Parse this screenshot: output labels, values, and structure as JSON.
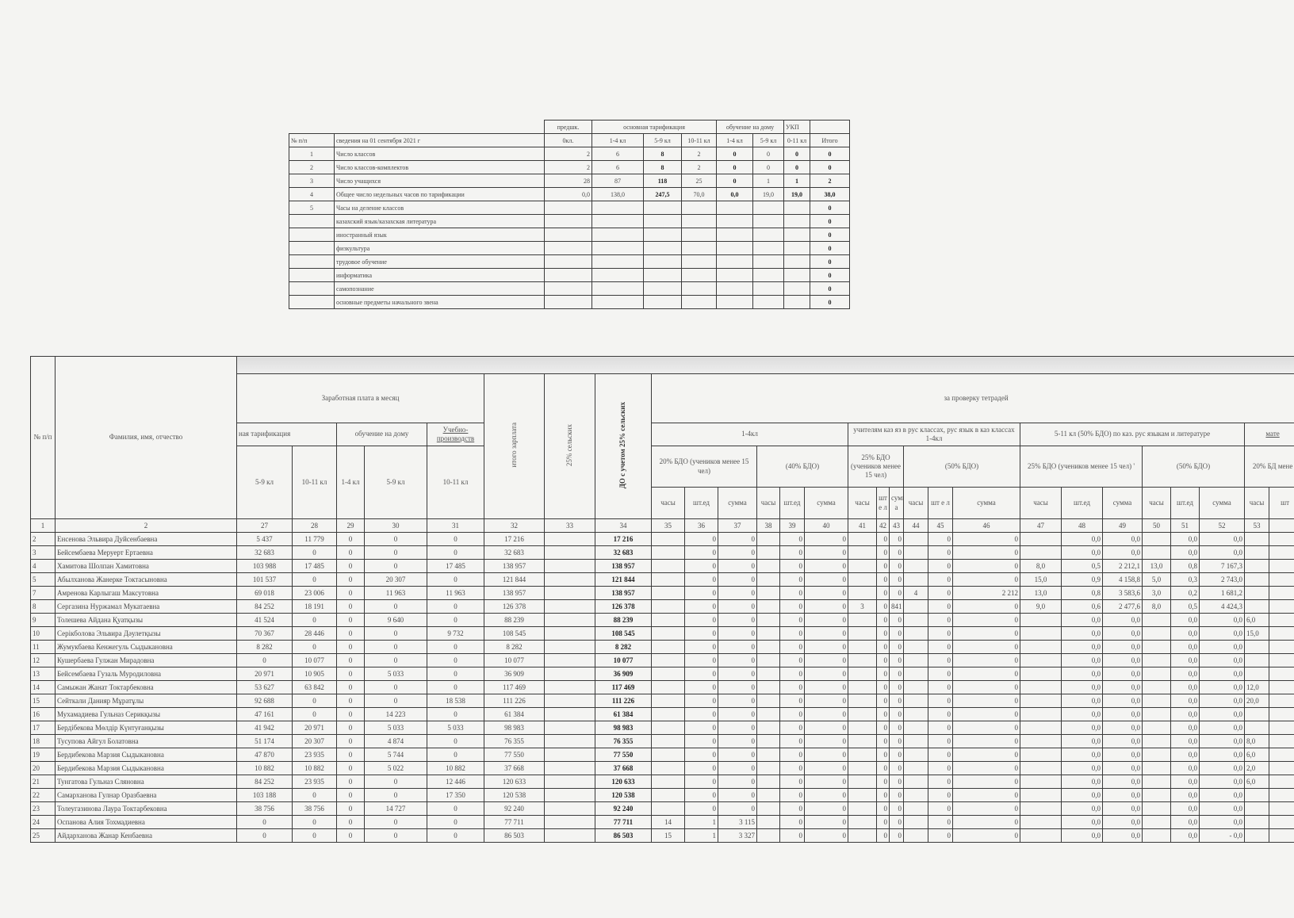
{
  "summary_table": {
    "group_headers": [
      "предшк.",
      "основная тарификация",
      "обучение на дому",
      "УКП"
    ],
    "headers": [
      "№ п/п",
      "сведения на 01 сентября 2021 г",
      "0кл.",
      "1-4 кл",
      "5-9 кл",
      "10-11 кл",
      "1-4 кл",
      "5-9 кл",
      "0-11 кл",
      "Итого"
    ],
    "rows": [
      [
        "1",
        "Число классов",
        "2",
        "6",
        "8",
        "2",
        "0",
        "0",
        "0",
        "0"
      ],
      [
        "2",
        "Число классов-комплектов",
        "2",
        "6",
        "8",
        "2",
        "0",
        "0",
        "0",
        "0"
      ],
      [
        "3",
        "Число учащихся",
        "28",
        "87",
        "118",
        "25",
        "0",
        "1",
        "1",
        "2"
      ],
      [
        "4",
        "Общее число недельных часов по тарификации",
        "0,0",
        "138,0",
        "247,5",
        "70,0",
        "0,0",
        "19,0",
        "19,0",
        "38,0"
      ],
      [
        "5",
        "Часы на деление классов",
        "",
        "",
        "",
        "",
        "",
        "",
        "",
        "0"
      ],
      [
        "",
        "казахский язык/казахская литература",
        "",
        "",
        "",
        "",
        "",
        "",
        "",
        "0"
      ],
      [
        "",
        "иностранный язык",
        "",
        "",
        "",
        "",
        "",
        "",
        "",
        "0"
      ],
      [
        "",
        "физкультура",
        "",
        "",
        "",
        "",
        "",
        "",
        "",
        "0"
      ],
      [
        "",
        "трудовое обучение",
        "",
        "",
        "",
        "",
        "",
        "",
        "",
        "0"
      ],
      [
        "",
        "информатика",
        "",
        "",
        "",
        "",
        "",
        "",
        "",
        "0"
      ],
      [
        "",
        "самопознание",
        "",
        "",
        "",
        "",
        "",
        "",
        "",
        "0"
      ],
      [
        "",
        "основные предметы начального звена",
        "",
        "",
        "",
        "",
        "",
        "",
        "",
        "0"
      ]
    ]
  },
  "payroll_table": {
    "h_num": "№ п/п",
    "h_name": "Фамилия, имя, отчество",
    "h_salary": "Заработная плата в месяц",
    "h_tarif": "ная тарификация",
    "h_home": "обучение на дому",
    "h_upk": "Учебно-производств",
    "h_leaf_salary": [
      "5-9 кл",
      "10-11 кл",
      "1-4 кл",
      "5-9 кл",
      "10-11 кл"
    ],
    "h_total": "итого зарплата",
    "h_rural": "25% сельских",
    "h_do": "ДО с учетом 25% сельских",
    "h_notebooks": "за проверку тетрадей",
    "h_groups": [
      "1-4кл",
      "учителям каз яз в рус классах, рус язык в каз классах 1-4кл",
      "5-11 кл (50% БДО) по каз. рус языкам и литературе",
      "мате"
    ],
    "h_subgroups": [
      "20% БДО (учеников менее 15 чел)",
      "(40% БДО)",
      "25% БДО (учеников менее 15 чел)",
      "(50% БДО)",
      "25% БДО (учеников менее 15 чел) '",
      "(50% БДО)",
      "20% БД мене"
    ],
    "h_leaf": [
      "часы",
      "шт.ед",
      "сумма",
      "часы",
      "шт.ед",
      "сумма",
      "часы",
      "шт е л",
      "сумм а",
      "часы",
      "шт е л",
      "сумма",
      "часы",
      "шт.ед",
      "сумма",
      "часы",
      "шт.ед",
      "сумма",
      "часы",
      "шт"
    ],
    "col_numbers": [
      "1",
      "2",
      "27",
      "28",
      "29",
      "30",
      "31",
      "32",
      "33",
      "34",
      "35",
      "36",
      "37",
      "38",
      "39",
      "40",
      "41",
      "42",
      "43",
      "44",
      "45",
      "46",
      "47",
      "48",
      "49",
      "50",
      "51",
      "52",
      "53",
      ""
    ],
    "rows": [
      [
        "2",
        "Енсенова Эльвира Дуйсенбаевна",
        "5 437",
        "11 779",
        "0",
        "0",
        "0",
        "17 216",
        "",
        "17 216",
        "",
        "0",
        "0",
        "",
        "0",
        "0",
        "",
        "0",
        "0",
        "",
        "0",
        "0",
        "",
        "0,0",
        "0,0",
        "",
        "0,0",
        "0,0",
        "",
        ""
      ],
      [
        "3",
        "Бейсембаева Меруерт Ертаевна",
        "32 683",
        "0",
        "0",
        "0",
        "0",
        "32 683",
        "",
        "32 683",
        "",
        "0",
        "0",
        "",
        "0",
        "0",
        "",
        "0",
        "0",
        "",
        "0",
        "0",
        "",
        "0,0",
        "0,0",
        "",
        "0,0",
        "0,0",
        "",
        ""
      ],
      [
        "4",
        "Хамитова Шолпан Хамитовна",
        "103 988",
        "17 485",
        "0",
        "0",
        "17 485",
        "138 957",
        "",
        "138 957",
        "",
        "0",
        "0",
        "",
        "0",
        "0",
        "",
        "0",
        "0",
        "",
        "0",
        "0",
        "8,0",
        "0,5",
        "2 212,1",
        "13,0",
        "0,8",
        "7 167,3",
        "",
        ""
      ],
      [
        "5",
        "Абылханова Жанерке Токтасыновна",
        "101 537",
        "0",
        "0",
        "20 307",
        "0",
        "121 844",
        "",
        "121 844",
        "",
        "0",
        "0",
        "",
        "0",
        "0",
        "",
        "0",
        "0",
        "",
        "0",
        "0",
        "15,0",
        "0,9",
        "4 158,8",
        "5,0",
        "0,3",
        "2 743,0",
        "",
        ""
      ],
      [
        "7",
        "Амренова Карлыгаш Максутовна",
        "69 018",
        "23 006",
        "0",
        "11 963",
        "11 963",
        "138 957",
        "",
        "138 957",
        "",
        "0",
        "0",
        "",
        "0",
        "0",
        "",
        "0",
        "0",
        "4",
        "0",
        "2 212",
        "13,0",
        "0,8",
        "3 583,6",
        "3,0",
        "0,2",
        "1 681,2",
        "",
        ""
      ],
      [
        "8",
        "Сергазина Нуржамал Мукатаевна",
        "84 252",
        "18 191",
        "0",
        "0",
        "0",
        "126 378",
        "",
        "126 378",
        "",
        "0",
        "0",
        "",
        "0",
        "0",
        "3",
        "0",
        "841",
        "",
        "0",
        "0",
        "9,0",
        "0,6",
        "2 477,6",
        "8,0",
        "0,5",
        "4 424,3",
        "",
        ""
      ],
      [
        "9",
        "Толешева Айдана Қуатқызы",
        "41 524",
        "0",
        "0",
        "9 640",
        "0",
        "88 239",
        "",
        "88 239",
        "",
        "0",
        "0",
        "",
        "0",
        "0",
        "",
        "0",
        "0",
        "",
        "0",
        "0",
        "",
        "0,0",
        "0,0",
        "",
        "0,0",
        "0,0",
        "6,0",
        ""
      ],
      [
        "10",
        "Серікболова Эльвира Дәулетқызы",
        "70 367",
        "28 446",
        "0",
        "0",
        "9 732",
        "108 545",
        "",
        "108 545",
        "",
        "0",
        "0",
        "",
        "0",
        "0",
        "",
        "0",
        "0",
        "",
        "0",
        "0",
        "",
        "0,0",
        "0,0",
        "",
        "0,0",
        "0,0",
        "15,0",
        ""
      ],
      [
        "11",
        "Жумукбаева Кенжегуль Сыдыкановна",
        "8 282",
        "0",
        "0",
        "0",
        "0",
        "8 282",
        "",
        "8 282",
        "",
        "0",
        "0",
        "",
        "0",
        "0",
        "",
        "0",
        "0",
        "",
        "0",
        "0",
        "",
        "0,0",
        "0,0",
        "",
        "0,0",
        "0,0",
        "",
        ""
      ],
      [
        "12",
        "Кушербаева Гулжан Мирадовна",
        "0",
        "10 077",
        "0",
        "0",
        "0",
        "10 077",
        "",
        "10 077",
        "",
        "0",
        "0",
        "",
        "0",
        "0",
        "",
        "0",
        "0",
        "",
        "0",
        "0",
        "",
        "0,0",
        "0,0",
        "",
        "0,0",
        "0,0",
        "",
        ""
      ],
      [
        "13",
        "Бейсембаева Гузаль Муродиловна",
        "20 971",
        "10 905",
        "0",
        "5 033",
        "0",
        "36 909",
        "",
        "36 909",
        "",
        "0",
        "0",
        "",
        "0",
        "0",
        "",
        "0",
        "0",
        "",
        "0",
        "0",
        "",
        "0,0",
        "0,0",
        "",
        "0,0",
        "0,0",
        "",
        ""
      ],
      [
        "14",
        "Самыжан Жанат Токтарбековна",
        "53 627",
        "63 842",
        "0",
        "0",
        "0",
        "117 469",
        "",
        "117 469",
        "",
        "0",
        "0",
        "",
        "0",
        "0",
        "",
        "0",
        "0",
        "",
        "0",
        "0",
        "",
        "0,0",
        "0,0",
        "",
        "0,0",
        "0,0",
        "12,0",
        ""
      ],
      [
        "15",
        "Сейткали Данияр Мұратұлы",
        "92 688",
        "0",
        "0",
        "0",
        "18 538",
        "111 226",
        "",
        "111 226",
        "",
        "0",
        "0",
        "",
        "0",
        "0",
        "",
        "0",
        "0",
        "",
        "0",
        "0",
        "",
        "0,0",
        "0,0",
        "",
        "0,0",
        "0,0",
        "20,0",
        ""
      ],
      [
        "16",
        "Мухамадиева Гульназ Серикқызы",
        "47 161",
        "0",
        "0",
        "14 223",
        "0",
        "61 384",
        "",
        "61 384",
        "",
        "0",
        "0",
        "",
        "0",
        "0",
        "",
        "0",
        "0",
        "",
        "0",
        "0",
        "",
        "0,0",
        "0,0",
        "",
        "0,0",
        "0,0",
        "",
        ""
      ],
      [
        "17",
        "Бердібекова Мөлдір Күнтуғанқызы",
        "41 942",
        "20 971",
        "0",
        "5 033",
        "5 033",
        "98 983",
        "",
        "98 983",
        "",
        "0",
        "0",
        "",
        "0",
        "0",
        "",
        "0",
        "0",
        "",
        "0",
        "0",
        "",
        "0,0",
        "0,0",
        "",
        "0,0",
        "0,0",
        "",
        ""
      ],
      [
        "18",
        "Тусупова Айгул Болатовна",
        "51 174",
        "20 307",
        "0",
        "4 874",
        "0",
        "76 355",
        "",
        "76 355",
        "",
        "0",
        "0",
        "",
        "0",
        "0",
        "",
        "0",
        "0",
        "",
        "0",
        "0",
        "",
        "0,0",
        "0,0",
        "",
        "0,0",
        "0,0",
        "8,0",
        ""
      ],
      [
        "19",
        "Бердибекова Марзия Сыдыкановна",
        "47 870",
        "23 935",
        "0",
        "5 744",
        "0",
        "77 550",
        "",
        "77 550",
        "",
        "0",
        "0",
        "",
        "0",
        "0",
        "",
        "0",
        "0",
        "",
        "0",
        "0",
        "",
        "0,0",
        "0,0",
        "",
        "0,0",
        "0,0",
        "6,0",
        ""
      ],
      [
        "20",
        "Бердибекова Марзия Сыдыкановна",
        "10 882",
        "10 882",
        "0",
        "5 022",
        "10 882",
        "37 668",
        "",
        "37 668",
        "",
        "0",
        "0",
        "",
        "0",
        "0",
        "",
        "0",
        "0",
        "",
        "0",
        "0",
        "",
        "0,0",
        "0,0",
        "",
        "0,0",
        "0,0",
        "2,0",
        ""
      ],
      [
        "21",
        "Тунгатова Гульназ Сляновна",
        "84 252",
        "23 935",
        "0",
        "0",
        "12 446",
        "120 633",
        "",
        "120 633",
        "",
        "0",
        "0",
        "",
        "0",
        "0",
        "",
        "0",
        "0",
        "",
        "0",
        "0",
        "",
        "0,0",
        "0,0",
        "",
        "0,0",
        "0,0",
        "6,0",
        ""
      ],
      [
        "22",
        "Самарханова Гулнар Оразбаевна",
        "103 188",
        "0",
        "0",
        "0",
        "17 350",
        "120 538",
        "",
        "120 538",
        "",
        "0",
        "0",
        "",
        "0",
        "0",
        "",
        "0",
        "0",
        "",
        "0",
        "0",
        "",
        "0,0",
        "0,0",
        "",
        "0,0",
        "0,0",
        "",
        ""
      ],
      [
        "23",
        "Толеугазинова Лаура Токтарбековна",
        "38 756",
        "38 756",
        "0",
        "14 727",
        "0",
        "92 240",
        "",
        "92 240",
        "",
        "0",
        "0",
        "",
        "0",
        "0",
        "",
        "0",
        "0",
        "",
        "0",
        "0",
        "",
        "0,0",
        "0,0",
        "",
        "0,0",
        "0,0",
        "",
        ""
      ],
      [
        "24",
        "Оспанова Алия Тохмадиевна",
        "0",
        "0",
        "0",
        "0",
        "0",
        "77 711",
        "",
        "77 711",
        "14",
        "1",
        "3 115",
        "",
        "0",
        "0",
        "",
        "0",
        "0",
        "",
        "0",
        "0",
        "",
        "0,0",
        "0,0",
        "",
        "0,0",
        "0,0",
        "",
        ""
      ],
      [
        "25",
        "Айдарханова Жанар Кенбаевна",
        "0",
        "0",
        "0",
        "0",
        "0",
        "86 503",
        "",
        "86 503",
        "15",
        "1",
        "3 327",
        "",
        "0",
        "0",
        "",
        "0",
        "0",
        "",
        "0",
        "0",
        "",
        "0,0",
        "0,0",
        "",
        "0,0",
        "- 0,0",
        "",
        ""
      ]
    ]
  }
}
